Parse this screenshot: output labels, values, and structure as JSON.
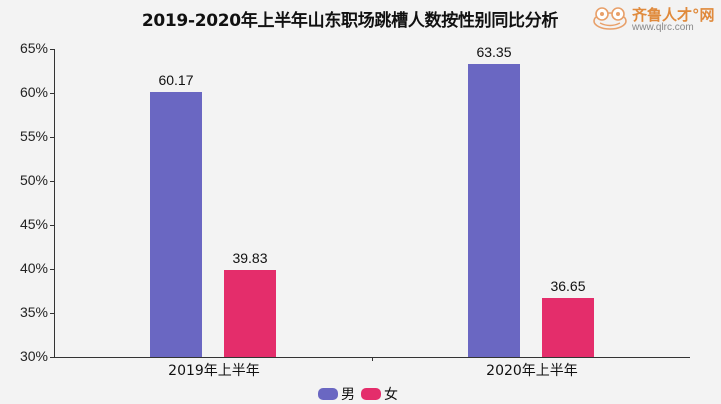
{
  "header": {
    "title": "2019-2020年上半年山东职场跳槽人数按性别同比分析",
    "logo_brand": "齐鲁人才°网",
    "logo_url": "www.qlrc.com"
  },
  "colors": {
    "male": "#6a67c2",
    "female": "#e42d6b"
  },
  "chart_data": {
    "type": "bar",
    "title": "2019-2020年上半年山东职场跳槽人数按性别同比分析",
    "xlabel": "",
    "ylabel": "",
    "categories": [
      "2019年上半年",
      "2020年上半年"
    ],
    "series": [
      {
        "name": "男",
        "values": [
          60.17,
          63.35
        ],
        "color": "#6a67c2"
      },
      {
        "name": "女",
        "values": [
          39.83,
          36.65
        ],
        "color": "#e42d6b"
      }
    ],
    "ylim": [
      30,
      65
    ],
    "yticks": [
      "30%",
      "35%",
      "40%",
      "45%",
      "50%",
      "55%",
      "60%",
      "65%"
    ],
    "value_labels": [
      "60.17",
      "39.83",
      "63.35",
      "36.65"
    ],
    "grid": false,
    "legend_position": "bottom"
  },
  "legend": {
    "male_label": "男",
    "female_label": "女"
  }
}
